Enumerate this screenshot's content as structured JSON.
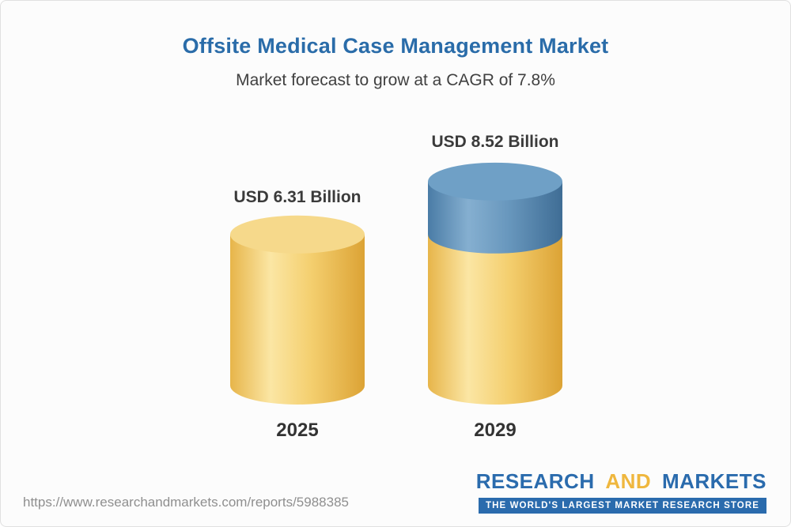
{
  "header": {
    "title": "Offsite Medical Case Management Market",
    "subtitle": "Market forecast to grow at a CAGR of 7.8%"
  },
  "chart_data": {
    "type": "bar",
    "subtype": "3d-cylinder",
    "title": "Offsite Medical Case Management Market",
    "subtitle": "Market forecast to grow at a CAGR of 7.8%",
    "categories": [
      "2025",
      "2029"
    ],
    "values": [
      6.31,
      8.52
    ],
    "value_labels": [
      "USD 6.31 Billion",
      "USD 8.52 Billion"
    ],
    "unit": "USD Billion",
    "cagr_percent": 7.8,
    "ylim": [
      0,
      9
    ],
    "legend": "none",
    "grid": false,
    "notes": "Second cylinder (2029) has a blue top segment representing growth above the 2025 value of 6.31.",
    "colors": {
      "yellow_gradient": [
        "#E7B54A",
        "#FBE6A4",
        "#F4CF6F",
        "#DCA335"
      ],
      "yellow_top": "#F6D98B",
      "blue_gradient": [
        "#4A7CA6",
        "#85AFD0",
        "#6897BD",
        "#3F6D95"
      ],
      "blue_top": "#6FA0C6"
    }
  },
  "footer": {
    "url": "https://www.researchandmarkets.com/reports/5988385",
    "logo": {
      "part1": "RESEARCH",
      "part2": "AND",
      "part3": "MARKETS",
      "tagline": "THE WORLD'S LARGEST MARKET RESEARCH STORE",
      "brand_blue": "#2A6BAD",
      "brand_gold": "#EFB73E"
    }
  }
}
